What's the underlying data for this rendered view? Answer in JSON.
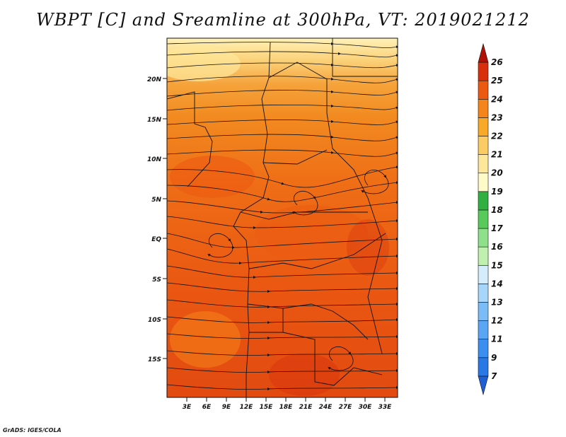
{
  "title": "WBPT [C] and Sreamline at 300hPa, VT: 2019021212",
  "credit": "GrADS: IGES/COLA",
  "lat_ticks": [
    "20N",
    "15N",
    "10N",
    "5N",
    "EQ",
    "5S",
    "10S",
    "15S"
  ],
  "lon_ticks": [
    "3E",
    "6E",
    "9E",
    "12E",
    "15E",
    "18E",
    "21E",
    "24E",
    "27E",
    "30E",
    "33E"
  ],
  "colorbar": {
    "labels": [
      "7",
      "9",
      "11",
      "12",
      "13",
      "14",
      "15",
      "16",
      "17",
      "18",
      "19",
      "20",
      "21",
      "22",
      "23",
      "24",
      "25",
      "26"
    ],
    "colors": [
      "#1f5fd6",
      "#2a78e6",
      "#3c8ff0",
      "#5aa6f5",
      "#7bbcf7",
      "#a8d6fa",
      "#d4ecfb",
      "#bff0b0",
      "#8fe08a",
      "#58c95a",
      "#2fb040",
      "#fffbc8",
      "#fde79a",
      "#fbcb64",
      "#f9a827",
      "#f5841a",
      "#ec5a12",
      "#d8300d",
      "#b01208"
    ]
  }
}
